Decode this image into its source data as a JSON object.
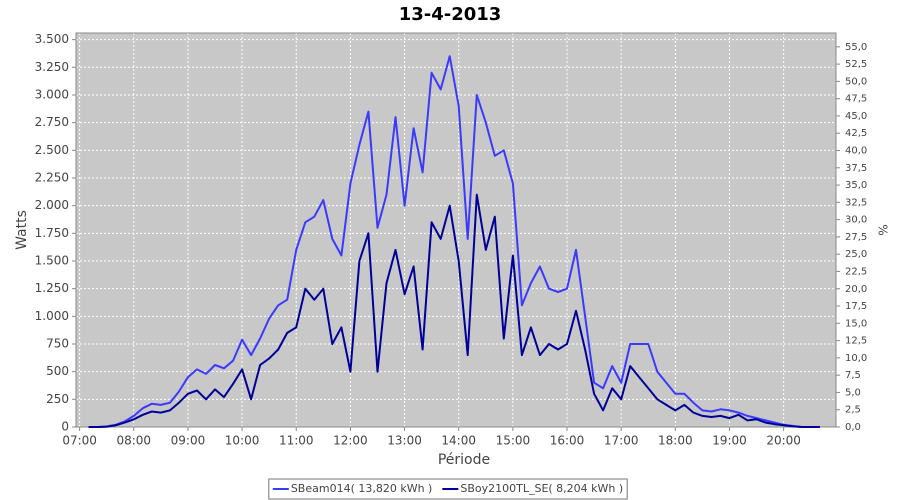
{
  "chart_data": {
    "type": "line",
    "title": "13-4-2013",
    "x_label": "Période",
    "y_label": "Watts",
    "y2_label": "%",
    "x": [
      "07:10",
      "07:20",
      "07:30",
      "07:40",
      "07:50",
      "08:00",
      "08:10",
      "08:20",
      "08:30",
      "08:40",
      "08:50",
      "09:00",
      "09:10",
      "09:20",
      "09:30",
      "09:40",
      "09:50",
      "10:00",
      "10:10",
      "10:20",
      "10:30",
      "10:40",
      "10:50",
      "11:00",
      "11:10",
      "11:20",
      "11:30",
      "11:40",
      "11:50",
      "12:00",
      "12:10",
      "12:20",
      "12:30",
      "12:40",
      "12:50",
      "13:00",
      "13:10",
      "13:20",
      "13:30",
      "13:40",
      "13:50",
      "14:00",
      "14:10",
      "14:20",
      "14:30",
      "14:40",
      "14:50",
      "15:00",
      "15:10",
      "15:20",
      "15:30",
      "15:40",
      "15:50",
      "16:00",
      "16:10",
      "16:20",
      "16:30",
      "16:40",
      "16:50",
      "17:00",
      "17:10",
      "17:20",
      "17:30",
      "17:40",
      "17:50",
      "18:00",
      "18:10",
      "18:20",
      "18:30",
      "18:40",
      "18:50",
      "19:00",
      "19:10",
      "19:20",
      "19:30",
      "19:40",
      "19:50",
      "20:00",
      "20:10",
      "20:20",
      "20:30",
      "20:40"
    ],
    "series": [
      {
        "name": "SBeam014( 13,820 kWh )",
        "color": "#3a3aff",
        "values": [
          0,
          0,
          5,
          20,
          50,
          100,
          170,
          210,
          200,
          220,
          320,
          450,
          520,
          480,
          560,
          530,
          600,
          790,
          650,
          800,
          980,
          1100,
          1150,
          1600,
          1850,
          1900,
          2050,
          1700,
          1550,
          2200,
          2550,
          2850,
          1800,
          2100,
          2800,
          2000,
          2700,
          2300,
          3200,
          3050,
          3350,
          2900,
          1700,
          3000,
          2750,
          2450,
          2500,
          2200,
          1100,
          1300,
          1450,
          1250,
          1220,
          1250,
          1600,
          1000,
          400,
          350,
          550,
          400,
          750,
          750,
          750,
          500,
          400,
          300,
          300,
          220,
          150,
          140,
          160,
          150,
          130,
          100,
          80,
          60,
          40,
          20,
          10,
          0,
          0,
          0
        ]
      },
      {
        "name": "SBoy2100TL_SE( 8,204 kWh )",
        "color": "#000099",
        "values": [
          0,
          0,
          3,
          15,
          40,
          70,
          110,
          140,
          130,
          150,
          220,
          300,
          330,
          250,
          340,
          270,
          390,
          520,
          250,
          560,
          620,
          700,
          850,
          900,
          1250,
          1150,
          1250,
          750,
          900,
          500,
          1500,
          1750,
          500,
          1300,
          1600,
          1200,
          1450,
          700,
          1850,
          1700,
          2000,
          1500,
          650,
          2100,
          1600,
          1900,
          800,
          1550,
          650,
          900,
          650,
          750,
          700,
          750,
          1050,
          700,
          300,
          150,
          350,
          250,
          550,
          450,
          350,
          250,
          200,
          150,
          200,
          130,
          100,
          90,
          100,
          80,
          110,
          60,
          70,
          40,
          25,
          15,
          5,
          0,
          0,
          0
        ]
      }
    ],
    "xlim": [
      "06:56",
      "20:58"
    ],
    "xticks": [
      "07:00",
      "08:00",
      "09:00",
      "10:00",
      "11:00",
      "12:00",
      "13:00",
      "14:00",
      "15:00",
      "16:00",
      "17:00",
      "18:00",
      "19:00",
      "20:00"
    ],
    "ylim": [
      0,
      3560
    ],
    "yticks": [
      0,
      250,
      500,
      750,
      {
        "value": 1000,
        "label": "1.000"
      },
      {
        "value": 1250,
        "label": "1.250"
      },
      {
        "value": 1500,
        "label": "1.500"
      },
      {
        "value": 1750,
        "label": "1.750"
      },
      {
        "value": 2000,
        "label": "2.000"
      },
      {
        "value": 2250,
        "label": "2.250"
      },
      {
        "value": 2500,
        "label": "2.500"
      },
      {
        "value": 2750,
        "label": "2.750"
      },
      {
        "value": 3000,
        "label": "3.000"
      },
      {
        "value": 3250,
        "label": "3.250"
      },
      {
        "value": 3500,
        "label": "3.500"
      }
    ],
    "y2lim": [
      0,
      57
    ],
    "y2ticks": [
      {
        "value": 0,
        "label": "0,0"
      },
      {
        "value": 2.5,
        "label": "2,5"
      },
      {
        "value": 5,
        "label": "5,0"
      },
      {
        "value": 7.5,
        "label": "7,5"
      },
      {
        "value": 10,
        "label": "10,0"
      },
      {
        "value": 12.5,
        "label": "12,5"
      },
      {
        "value": 15,
        "label": "15,0"
      },
      {
        "value": 17.5,
        "label": "17,5"
      },
      {
        "value": 20,
        "label": "20,0"
      },
      {
        "value": 22.5,
        "label": "22,5"
      },
      {
        "value": 25,
        "label": "25,0"
      },
      {
        "value": 27.5,
        "label": "27,5"
      },
      {
        "value": 30,
        "label": "30,0"
      },
      {
        "value": 32.5,
        "label": "32,5"
      },
      {
        "value": 35,
        "label": "35,0"
      },
      {
        "value": 37.5,
        "label": "37,5"
      },
      {
        "value": 40,
        "label": "40,0"
      },
      {
        "value": 42.5,
        "label": "42,5"
      },
      {
        "value": 45,
        "label": "45,0"
      },
      {
        "value": 47.5,
        "label": "47,5"
      },
      {
        "value": 50,
        "label": "50,0"
      },
      {
        "value": 52.5,
        "label": "52,5"
      },
      {
        "value": 55,
        "label": "55,0"
      }
    ],
    "grid": true,
    "legend": "bottom"
  }
}
